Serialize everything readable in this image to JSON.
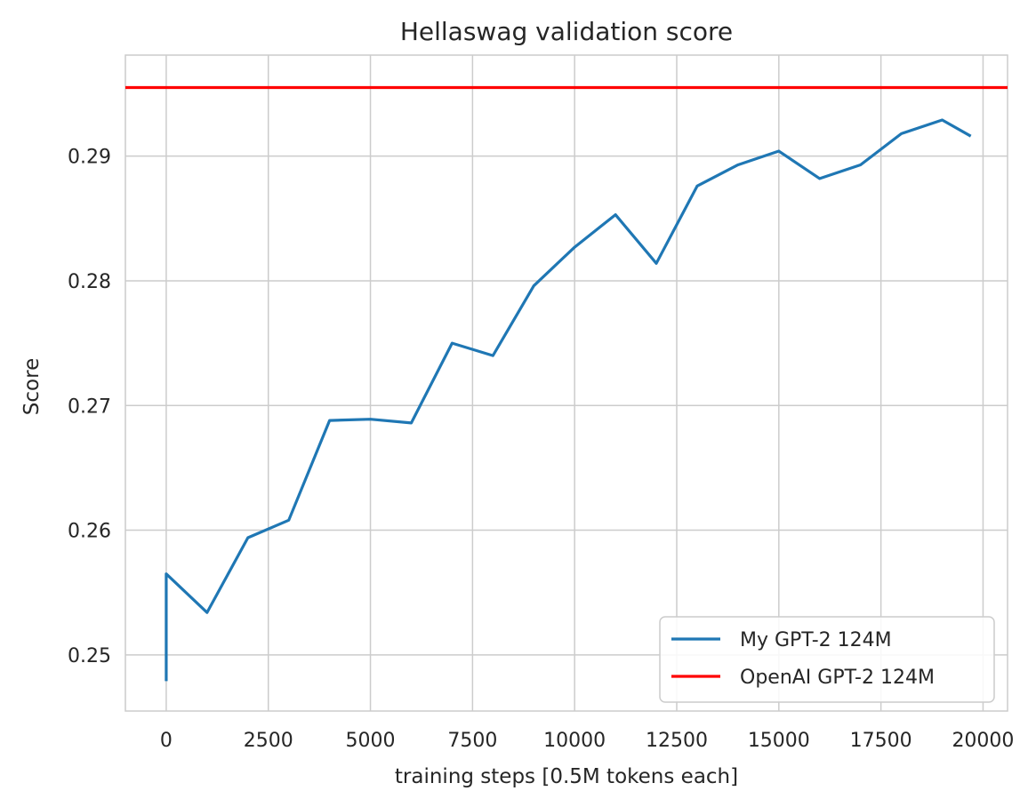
{
  "chart_data": {
    "type": "line",
    "title": "Hellaswag validation score",
    "xlabel": "training steps [0.5M tokens each]",
    "ylabel": "Score",
    "xlim": [
      -1000,
      20600
    ],
    "ylim": [
      0.2455,
      0.2981
    ],
    "xticks": [
      0,
      2500,
      5000,
      7500,
      10000,
      12500,
      15000,
      17500,
      20000
    ],
    "yticks": [
      0.25,
      0.26,
      0.27,
      0.28,
      0.29
    ],
    "grid": true,
    "legend_position": "bottom-right",
    "series": [
      {
        "name": "My GPT-2 124M",
        "color": "#1f77b4",
        "x": [
          0,
          0,
          1000,
          2000,
          3000,
          4000,
          5000,
          6000,
          7000,
          8000,
          9000,
          10000,
          11000,
          12000,
          13000,
          14000,
          15000,
          16000,
          17000,
          18000,
          19000,
          19700
        ],
        "y": [
          0.2479,
          0.2565,
          0.2534,
          0.2594,
          0.2608,
          0.2688,
          0.2689,
          0.2686,
          0.275,
          0.274,
          0.2796,
          0.2827,
          0.2853,
          0.2814,
          0.2876,
          0.2893,
          0.2904,
          0.2882,
          0.2893,
          0.2918,
          0.2929,
          0.2916
        ]
      },
      {
        "name": "OpenAI GPT-2 124M",
        "color": "#ff0000",
        "hline": 0.2955
      }
    ]
  }
}
